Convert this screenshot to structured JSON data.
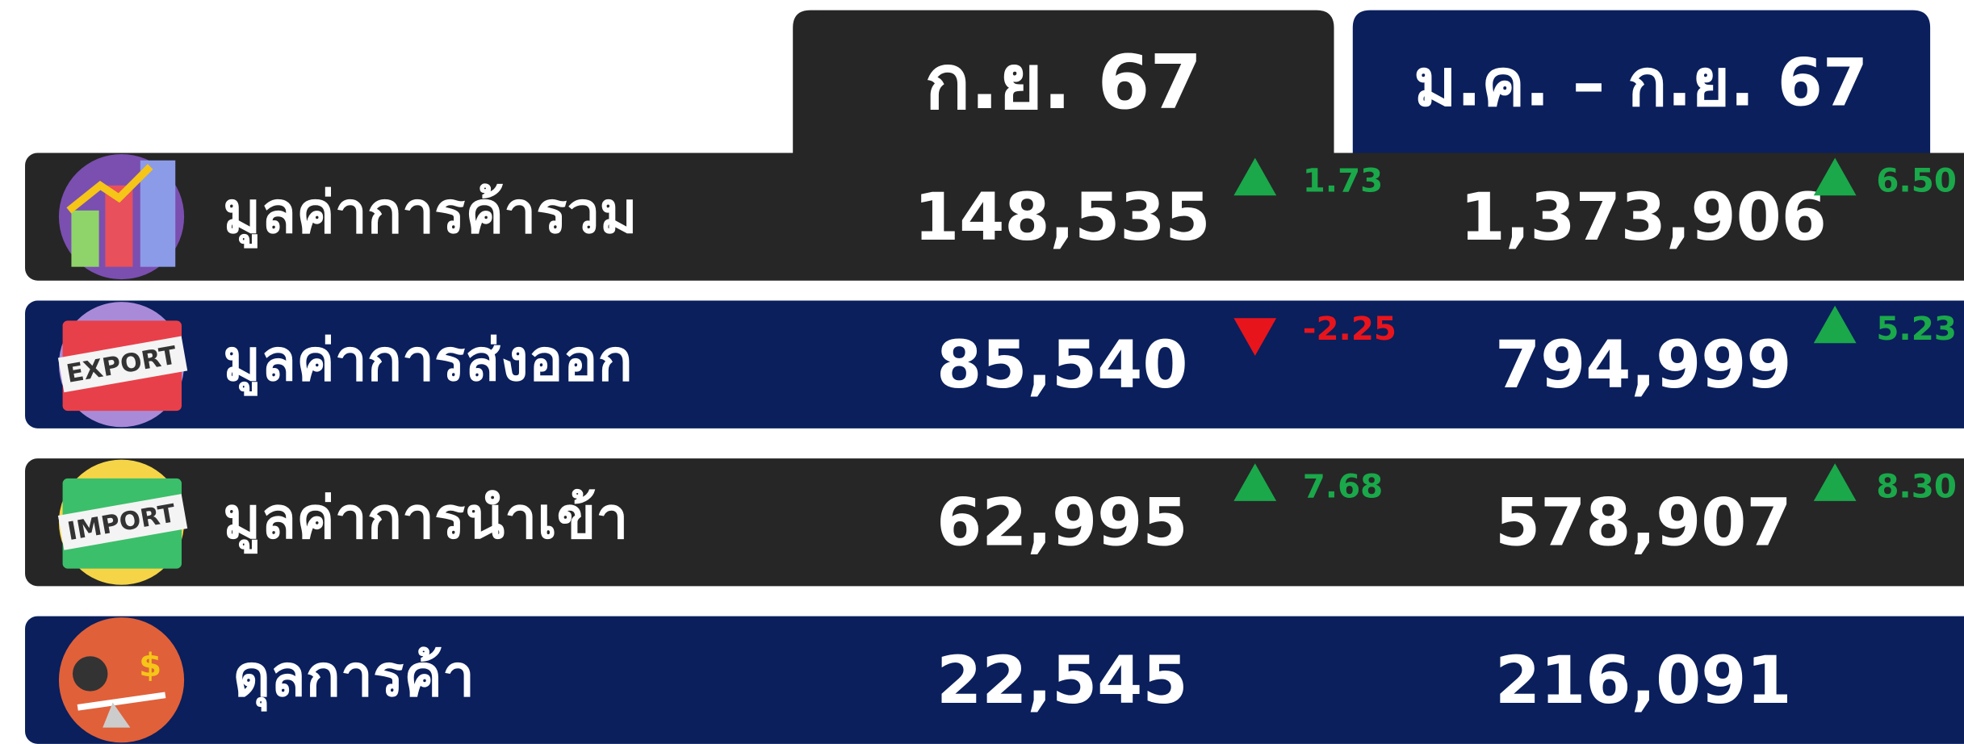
{
  "header": {
    "columns": [
      "ก.ย. 67",
      "ม.ค. – ก.ย. 67"
    ]
  },
  "rows": [
    {
      "label": "มูลค่าการค้ารวม",
      "month_value": "148,535",
      "month_change": "1.73",
      "ytd_value": "1,373,906",
      "ytd_change": "6.50"
    },
    {
      "label": "มูลค่าการส่งออก",
      "icon_text": "EXPORT",
      "month_value": "85,540",
      "month_change": "-2.25",
      "ytd_value": "794,999",
      "ytd_change": "5.23"
    },
    {
      "label": "มูลค่าการนำเข้า",
      "icon_text": "IMPORT",
      "month_value": "62,995",
      "month_change": "7.68",
      "ytd_value": "578,907",
      "ytd_change": "8.30"
    },
    {
      "label": "ดุลการค้า",
      "month_value": "22,545",
      "ytd_value": "216,091"
    }
  ]
}
